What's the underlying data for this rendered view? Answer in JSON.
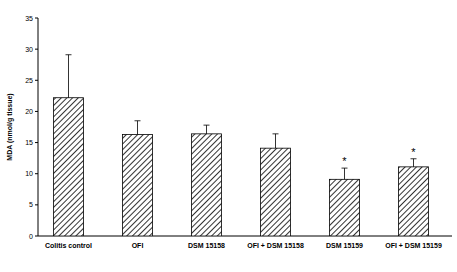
{
  "chart_data": {
    "type": "bar",
    "y_label": "MDA (nmol/g tissue)",
    "categories": [
      "Colitis control",
      "OFI",
      "DSM 15158",
      "OFI + DSM 15158",
      "DSM 15159",
      "OFI + DSM 15159"
    ],
    "values": [
      22.2,
      16.3,
      16.4,
      14.1,
      9.1,
      11.1
    ],
    "errors": [
      6.9,
      2.2,
      1.4,
      2.3,
      1.8,
      1.3
    ],
    "annotations": [
      null,
      null,
      null,
      null,
      "*",
      "*"
    ],
    "color": "#000000",
    "ylim": [
      0,
      35
    ],
    "yticks": [
      0,
      5,
      10,
      15,
      20,
      25,
      30,
      35
    ],
    "grid": false
  }
}
